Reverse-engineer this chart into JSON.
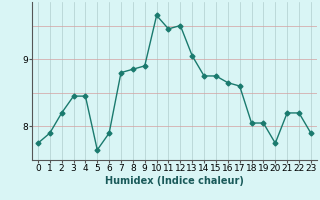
{
  "x": [
    0,
    1,
    2,
    3,
    4,
    5,
    6,
    7,
    8,
    9,
    10,
    11,
    12,
    13,
    14,
    15,
    16,
    17,
    18,
    19,
    20,
    21,
    22,
    23
  ],
  "y": [
    7.75,
    7.9,
    8.2,
    8.45,
    8.45,
    7.65,
    7.9,
    8.8,
    8.85,
    8.9,
    9.65,
    9.45,
    9.5,
    9.05,
    8.75,
    8.75,
    8.65,
    8.6,
    8.05,
    8.05,
    7.75,
    8.2,
    8.2,
    7.9
  ],
  "line_color": "#1a7a6e",
  "marker": "D",
  "marker_size": 2.5,
  "bg_color": "#d9f5f5",
  "grid_h_color": "#d4a0a0",
  "grid_v_color": "#b0cece",
  "xlabel": "Humidex (Indice chaleur)",
  "xlim": [
    -0.5,
    23.5
  ],
  "ylim": [
    7.5,
    9.85
  ],
  "yticks": [
    8,
    9
  ],
  "xticks": [
    0,
    1,
    2,
    3,
    4,
    5,
    6,
    7,
    8,
    9,
    10,
    11,
    12,
    13,
    14,
    15,
    16,
    17,
    18,
    19,
    20,
    21,
    22,
    23
  ],
  "xlabel_fontsize": 7,
  "tick_fontsize": 6.5
}
